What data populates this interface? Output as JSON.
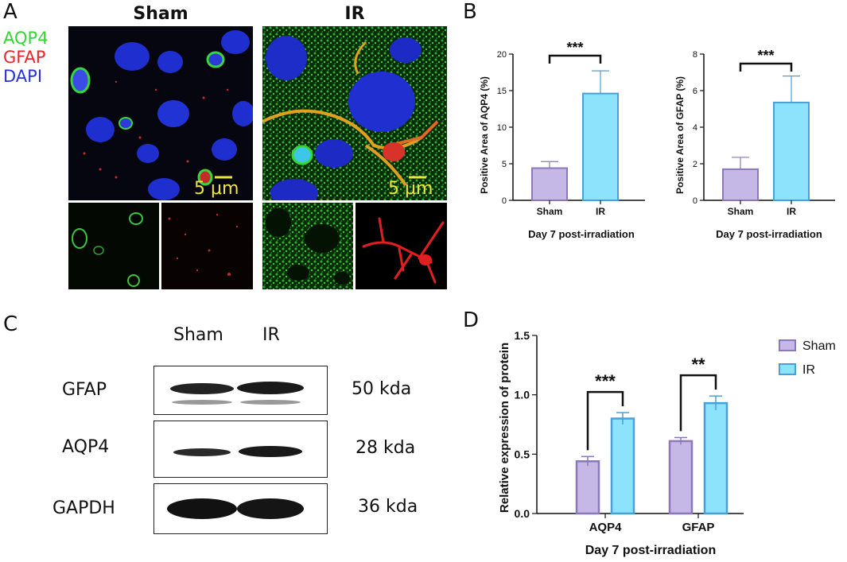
{
  "panels": {
    "a": "A",
    "b": "B",
    "c": "C",
    "d": "D"
  },
  "panel_a": {
    "groups": [
      "Sham",
      "IR"
    ],
    "channels": [
      {
        "name": "AQP4",
        "color": "#35d435"
      },
      {
        "name": "GFAP",
        "color": "#e8262a"
      },
      {
        "name": "DAPI",
        "color": "#2432e0"
      }
    ],
    "scale_bar": "5 μm"
  },
  "panel_c": {
    "lanes": [
      "Sham",
      "IR"
    ],
    "rows": [
      {
        "protein": "GFAP",
        "size": "50 kda"
      },
      {
        "protein": "AQP4",
        "size": "28 kda"
      },
      {
        "protein": "GAPDH",
        "size": "36 kda"
      }
    ]
  },
  "chart_data": [
    {
      "type": "bar",
      "categories": [
        "Sham",
        "IR"
      ],
      "values": [
        4.4,
        14.6
      ],
      "errors": [
        0.9,
        3.1
      ],
      "ylabel": "Positive Area of AQP4 (%)",
      "xlabel": "Day 7 post-irradiation",
      "ylim": [
        0,
        20
      ],
      "yticks": [
        0,
        5,
        10,
        15,
        20
      ],
      "significance": "***",
      "colors": [
        "#c6b8e6",
        "#8ee3fc"
      ],
      "edge_colors": [
        "#8a78b8",
        "#4a9fd8"
      ]
    },
    {
      "type": "bar",
      "categories": [
        "Sham",
        "IR"
      ],
      "values": [
        1.7,
        5.35
      ],
      "errors": [
        0.65,
        1.45
      ],
      "ylabel": "Positive Area of GFAP (%)",
      "xlabel": "Day 7 post-irradiation",
      "ylim": [
        0,
        8
      ],
      "yticks": [
        0,
        2,
        4,
        6,
        8
      ],
      "significance": "***",
      "colors": [
        "#c6b8e6",
        "#8ee3fc"
      ],
      "edge_colors": [
        "#8a78b8",
        "#4a9fd8"
      ]
    },
    {
      "type": "bar",
      "categories": [
        "AQP4",
        "GFAP"
      ],
      "series": [
        {
          "name": "Sham",
          "values": [
            0.44,
            0.61
          ],
          "errors": [
            0.04,
            0.03
          ],
          "color": "#c6b8e6",
          "edge": "#8a78b8"
        },
        {
          "name": "IR",
          "values": [
            0.8,
            0.93
          ],
          "errors": [
            0.05,
            0.06
          ],
          "color": "#8ee3fc",
          "edge": "#4a9fd8"
        }
      ],
      "ylabel": "Relative expression of protein",
      "xlabel": "Day 7 post-irradiation",
      "ylim": [
        0,
        1.5
      ],
      "yticks": [
        "0.0",
        "0.5",
        "1.0",
        "1.5"
      ],
      "significance": [
        "***",
        "**"
      ],
      "legend_position": "right"
    }
  ]
}
